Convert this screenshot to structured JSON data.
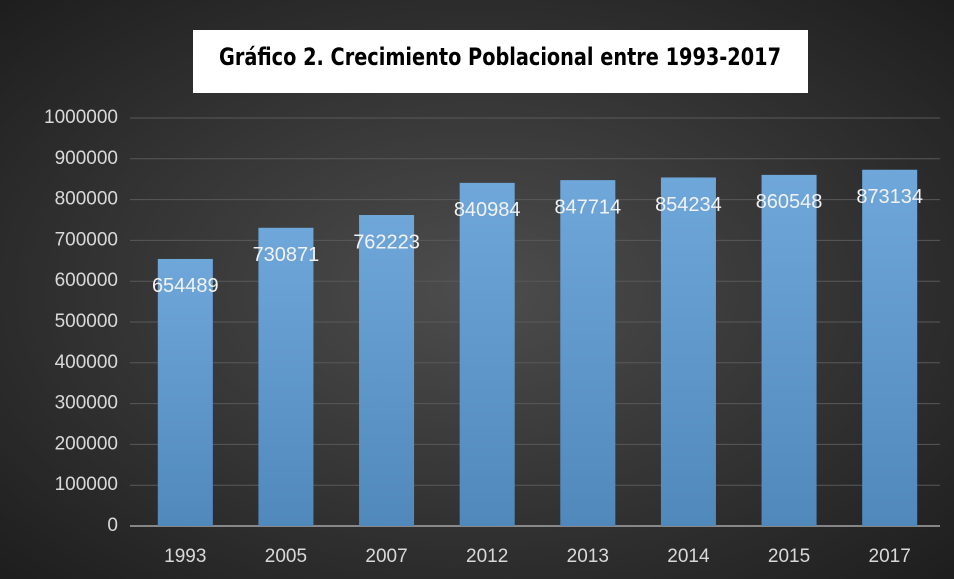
{
  "chart_data": {
    "type": "bar",
    "title": "Gráfico 2. Crecimiento Poblacional entre 1993-2017",
    "categories": [
      "1993",
      "2005",
      "2007",
      "2012",
      "2013",
      "2014",
      "2015",
      "2017"
    ],
    "values": [
      654489,
      730871,
      762223,
      840984,
      847714,
      854234,
      860548,
      873134
    ],
    "color": "#5b9bd5",
    "ylim": [
      0,
      1000000
    ],
    "yticks": [
      0,
      100000,
      200000,
      300000,
      400000,
      500000,
      600000,
      700000,
      800000,
      900000,
      1000000
    ],
    "grid": true
  }
}
